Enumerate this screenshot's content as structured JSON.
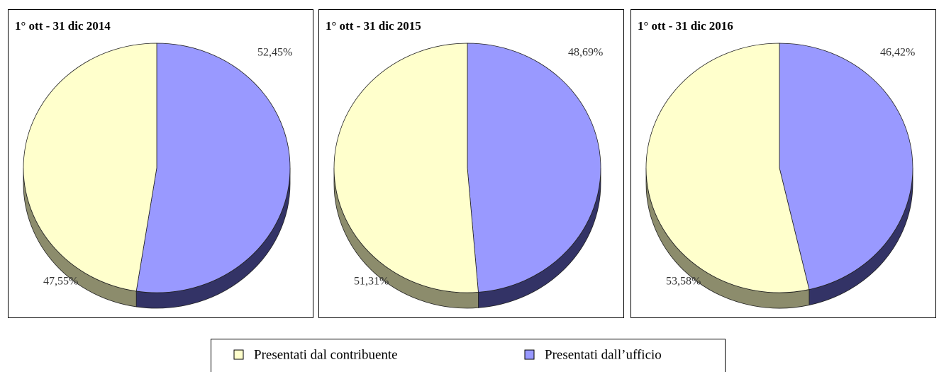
{
  "legend": {
    "items": [
      {
        "name": "Presentati dal contribuente",
        "color": "#ffffcc",
        "side": "#8c8c6c"
      },
      {
        "name": "Presentati dall’ufficio",
        "color": "#9999ff",
        "side": "#333366"
      }
    ]
  },
  "chart_data": [
    {
      "type": "pie",
      "title": "1° ott - 31 dic 2014",
      "values": [
        47.55,
        52.45
      ],
      "value_labels": [
        "47,55%",
        "52,45%"
      ]
    },
    {
      "type": "pie",
      "title": "1° ott - 31 dic 2015",
      "values": [
        51.31,
        48.69
      ],
      "value_labels": [
        "51,31%",
        "48,69%"
      ]
    },
    {
      "type": "pie",
      "title": "1° ott - 31 dic 2016",
      "values": [
        53.58,
        46.42
      ],
      "value_labels": [
        "53,58%",
        "46,42%"
      ]
    }
  ]
}
